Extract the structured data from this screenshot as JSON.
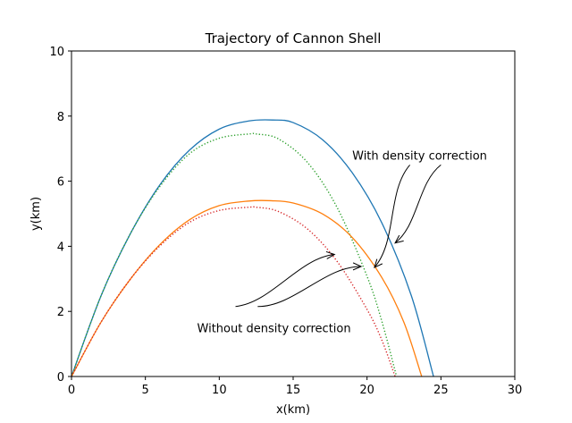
{
  "chart_data": {
    "type": "line",
    "title": "Trajectory of Cannon Shell",
    "xlabel": "x(km)",
    "ylabel": "y(km)",
    "xlim": [
      0,
      30
    ],
    "ylim": [
      0,
      10
    ],
    "xticks": [
      "0",
      "5",
      "10",
      "15",
      "20",
      "25",
      "30"
    ],
    "yticks": [
      "0",
      "2",
      "4",
      "6",
      "8",
      "10"
    ],
    "grid": false,
    "series": [
      {
        "color": "#1f77b4",
        "style": "solid",
        "x": [
          0,
          2,
          4,
          6,
          8,
          10,
          12,
          13.6,
          15,
          17,
          19,
          21,
          23,
          24.5
        ],
        "y": [
          0,
          2.48,
          4.4,
          5.9,
          6.96,
          7.6,
          7.85,
          7.88,
          7.8,
          7.27,
          6.26,
          4.72,
          2.48,
          0
        ]
      },
      {
        "color": "#2ca02c",
        "style": "dotted",
        "x": [
          0,
          2,
          4,
          6,
          8,
          10,
          12,
          12.5,
          14,
          16,
          18,
          20,
          21,
          22
        ],
        "y": [
          0,
          2.48,
          4.4,
          5.85,
          6.85,
          7.32,
          7.45,
          7.45,
          7.3,
          6.56,
          5.17,
          3.08,
          1.7,
          0
        ]
      },
      {
        "color": "#ff7f0e",
        "style": "solid",
        "x": [
          0,
          2,
          4,
          6,
          8,
          10,
          12,
          13.5,
          15,
          17,
          19,
          21,
          22.5,
          23.7
        ],
        "y": [
          0,
          1.67,
          3.0,
          4.06,
          4.82,
          5.25,
          5.39,
          5.4,
          5.33,
          4.99,
          4.27,
          3.04,
          1.66,
          0
        ]
      },
      {
        "color": "#d62728",
        "style": "dotted",
        "x": [
          0,
          2,
          4,
          6,
          8,
          10,
          12,
          12.5,
          14,
          16,
          18,
          20,
          21,
          21.9
        ],
        "y": [
          0,
          1.67,
          3.0,
          4.02,
          4.74,
          5.1,
          5.2,
          5.2,
          5.07,
          4.52,
          3.52,
          2.06,
          1.12,
          0
        ]
      }
    ],
    "annotations": [
      {
        "text": "With density correction",
        "text_x": 19,
        "text_y": 6.8,
        "targets": [
          {
            "x": 20.5,
            "y": 3.35,
            "from": [
              22.9,
              6.5
            ]
          },
          {
            "x": 21.9,
            "y": 4.1,
            "from": [
              25.0,
              6.5
            ]
          }
        ]
      },
      {
        "text": "Without density correction",
        "text_x": 8.5,
        "text_y": 1.5,
        "targets": [
          {
            "x": 17.8,
            "y": 3.75,
            "from": [
              11.1,
              2.15
            ]
          },
          {
            "x": 19.6,
            "y": 3.38,
            "from": [
              12.6,
              2.15
            ]
          }
        ]
      }
    ]
  }
}
